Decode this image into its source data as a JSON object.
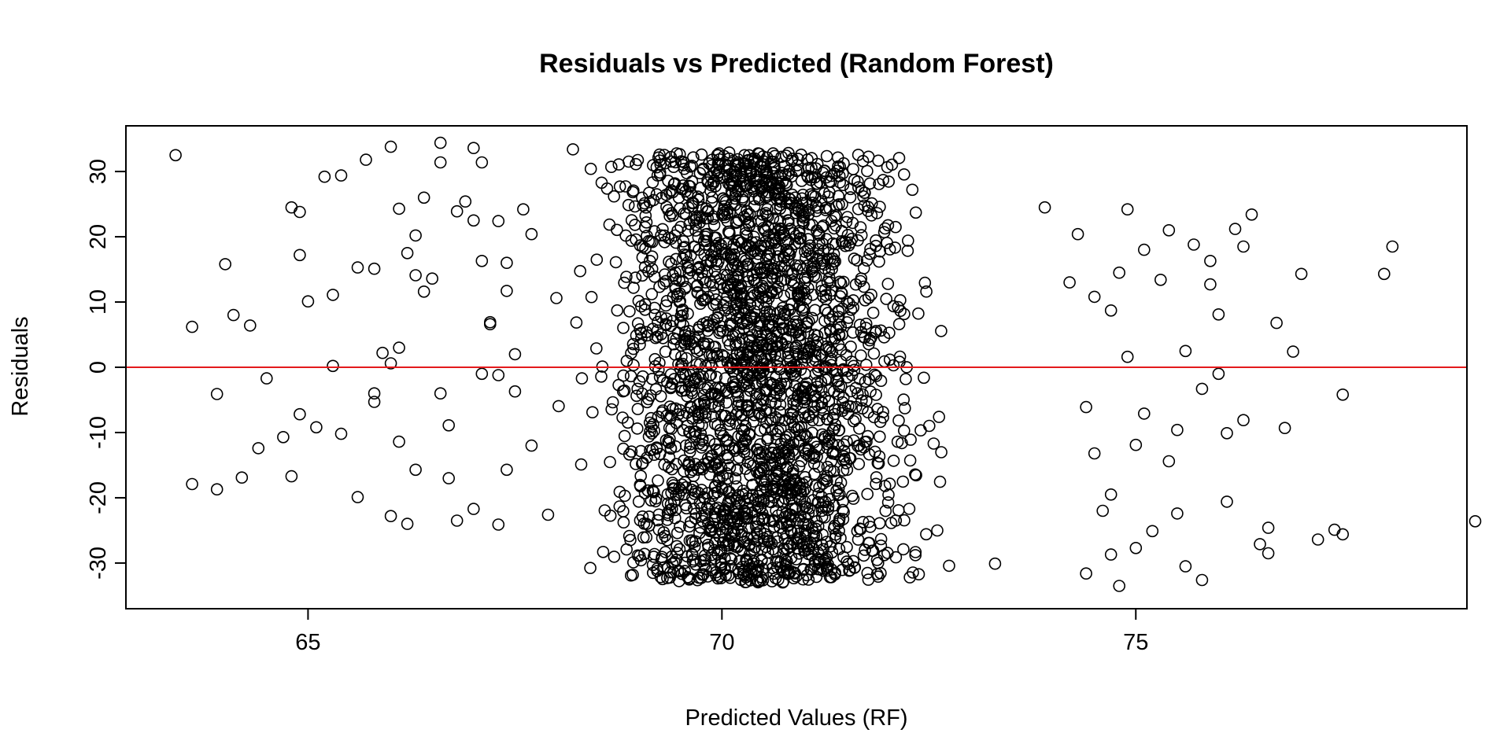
{
  "chart_data": {
    "type": "scatter",
    "title": "Residuals vs Predicted (Random Forest)",
    "xlabel": "Predicted Values (RF)",
    "ylabel": "Residuals",
    "xlim": [
      62.8,
      79.0
    ],
    "ylim": [
      -37,
      37
    ],
    "x_ticks": [
      65,
      70,
      75
    ],
    "y_ticks": [
      -30,
      -20,
      -10,
      0,
      10,
      20,
      30
    ],
    "reference_line": {
      "y": 0,
      "color": "#e41a1c"
    },
    "grid": false,
    "legend": "none",
    "point_style": "open-circle",
    "dense_region": {
      "x_range": [
        66.5,
        74.2
      ],
      "y_range": [
        -33,
        33
      ],
      "approx_points": 2600
    },
    "points": [
      [
        63.4,
        32.5
      ],
      [
        63.6,
        6.2
      ],
      [
        63.6,
        -17.9
      ],
      [
        63.9,
        -18.7
      ],
      [
        63.9,
        -4.1
      ],
      [
        64.0,
        15.8
      ],
      [
        64.1,
        8.0
      ],
      [
        64.2,
        -16.9
      ],
      [
        64.3,
        6.4
      ],
      [
        64.4,
        -12.4
      ],
      [
        64.5,
        -1.7
      ],
      [
        64.7,
        -10.7
      ],
      [
        64.8,
        24.5
      ],
      [
        64.8,
        -16.7
      ],
      [
        64.9,
        17.2
      ],
      [
        64.9,
        23.8
      ],
      [
        64.9,
        -7.2
      ],
      [
        65.0,
        10.1
      ],
      [
        65.1,
        -9.2
      ],
      [
        65.2,
        29.2
      ],
      [
        65.3,
        11.1
      ],
      [
        65.3,
        0.2
      ],
      [
        65.4,
        29.4
      ],
      [
        65.4,
        -10.2
      ],
      [
        65.6,
        15.3
      ],
      [
        65.6,
        -19.9
      ],
      [
        65.7,
        31.8
      ],
      [
        65.8,
        15.1
      ],
      [
        65.8,
        -4.0
      ],
      [
        65.8,
        -5.3
      ],
      [
        65.9,
        2.2
      ],
      [
        66.0,
        33.8
      ],
      [
        66.0,
        0.6
      ],
      [
        66.0,
        -22.8
      ],
      [
        66.1,
        24.3
      ],
      [
        66.1,
        3.0
      ],
      [
        66.1,
        -11.4
      ],
      [
        66.2,
        17.5
      ],
      [
        66.2,
        -24.0
      ],
      [
        66.3,
        14.1
      ],
      [
        66.3,
        20.2
      ],
      [
        66.3,
        -15.7
      ],
      [
        66.4,
        26.0
      ],
      [
        66.4,
        11.6
      ],
      [
        66.5,
        13.6
      ],
      [
        66.6,
        34.4
      ],
      [
        66.6,
        31.4
      ],
      [
        66.6,
        -4.0
      ],
      [
        66.7,
        -8.9
      ],
      [
        66.7,
        -17.0
      ],
      [
        66.8,
        23.9
      ],
      [
        66.8,
        -23.5
      ],
      [
        66.9,
        25.4
      ],
      [
        67.0,
        33.6
      ],
      [
        67.0,
        22.5
      ],
      [
        67.0,
        -21.7
      ],
      [
        67.1,
        31.4
      ],
      [
        67.1,
        16.3
      ],
      [
        67.1,
        -1.0
      ],
      [
        67.2,
        6.6
      ],
      [
        67.2,
        6.9
      ],
      [
        67.3,
        22.4
      ],
      [
        67.3,
        -1.2
      ],
      [
        67.3,
        -24.1
      ],
      [
        67.4,
        16.0
      ],
      [
        67.4,
        11.7
      ],
      [
        67.4,
        -15.7
      ],
      [
        67.5,
        2.0
      ],
      [
        67.5,
        -3.7
      ],
      [
        67.6,
        24.2
      ],
      [
        67.7,
        20.4
      ],
      [
        67.7,
        -12.0
      ],
      [
        67.9,
        -22.6
      ],
      [
        68.0,
        10.6
      ],
      [
        68.2,
        33.4
      ],
      [
        68.3,
        -14.9
      ],
      [
        69.5,
        -3.1
      ],
      [
        71.6,
        28.7
      ],
      [
        72.3,
        27.2
      ],
      [
        73.3,
        -30.1
      ],
      [
        73.9,
        24.5
      ],
      [
        74.2,
        13.0
      ],
      [
        74.3,
        20.4
      ],
      [
        74.4,
        -6.1
      ],
      [
        74.4,
        -31.6
      ],
      [
        74.5,
        10.8
      ],
      [
        74.5,
        -13.2
      ],
      [
        74.6,
        -22.0
      ],
      [
        74.7,
        8.7
      ],
      [
        74.7,
        -19.5
      ],
      [
        74.7,
        -28.7
      ],
      [
        74.8,
        14.5
      ],
      [
        74.8,
        -33.5
      ],
      [
        74.9,
        24.2
      ],
      [
        74.9,
        1.6
      ],
      [
        75.0,
        -11.9
      ],
      [
        75.0,
        -27.7
      ],
      [
        75.1,
        18.0
      ],
      [
        75.1,
        -7.1
      ],
      [
        75.2,
        -25.1
      ],
      [
        75.3,
        13.4
      ],
      [
        75.4,
        21.0
      ],
      [
        75.4,
        -14.4
      ],
      [
        75.5,
        -9.6
      ],
      [
        75.5,
        -22.4
      ],
      [
        75.6,
        2.5
      ],
      [
        75.6,
        -30.5
      ],
      [
        75.7,
        18.8
      ],
      [
        75.8,
        -3.3
      ],
      [
        75.8,
        -32.6
      ],
      [
        75.9,
        12.7
      ],
      [
        75.9,
        16.3
      ],
      [
        76.0,
        8.1
      ],
      [
        76.0,
        -1.0
      ],
      [
        76.1,
        -20.6
      ],
      [
        76.1,
        -10.1
      ],
      [
        76.2,
        21.2
      ],
      [
        76.3,
        18.5
      ],
      [
        76.3,
        -8.1
      ],
      [
        76.4,
        23.4
      ],
      [
        76.5,
        -27.1
      ],
      [
        76.6,
        -24.6
      ],
      [
        76.6,
        -28.5
      ],
      [
        76.7,
        6.8
      ],
      [
        76.8,
        -9.3
      ],
      [
        76.9,
        2.4
      ],
      [
        77.0,
        14.3
      ],
      [
        77.2,
        -26.4
      ],
      [
        77.4,
        -24.9
      ],
      [
        77.5,
        -25.6
      ],
      [
        77.5,
        -4.2
      ],
      [
        78.0,
        14.3
      ],
      [
        78.1,
        18.5
      ],
      [
        79.1,
        -23.6
      ]
    ]
  }
}
